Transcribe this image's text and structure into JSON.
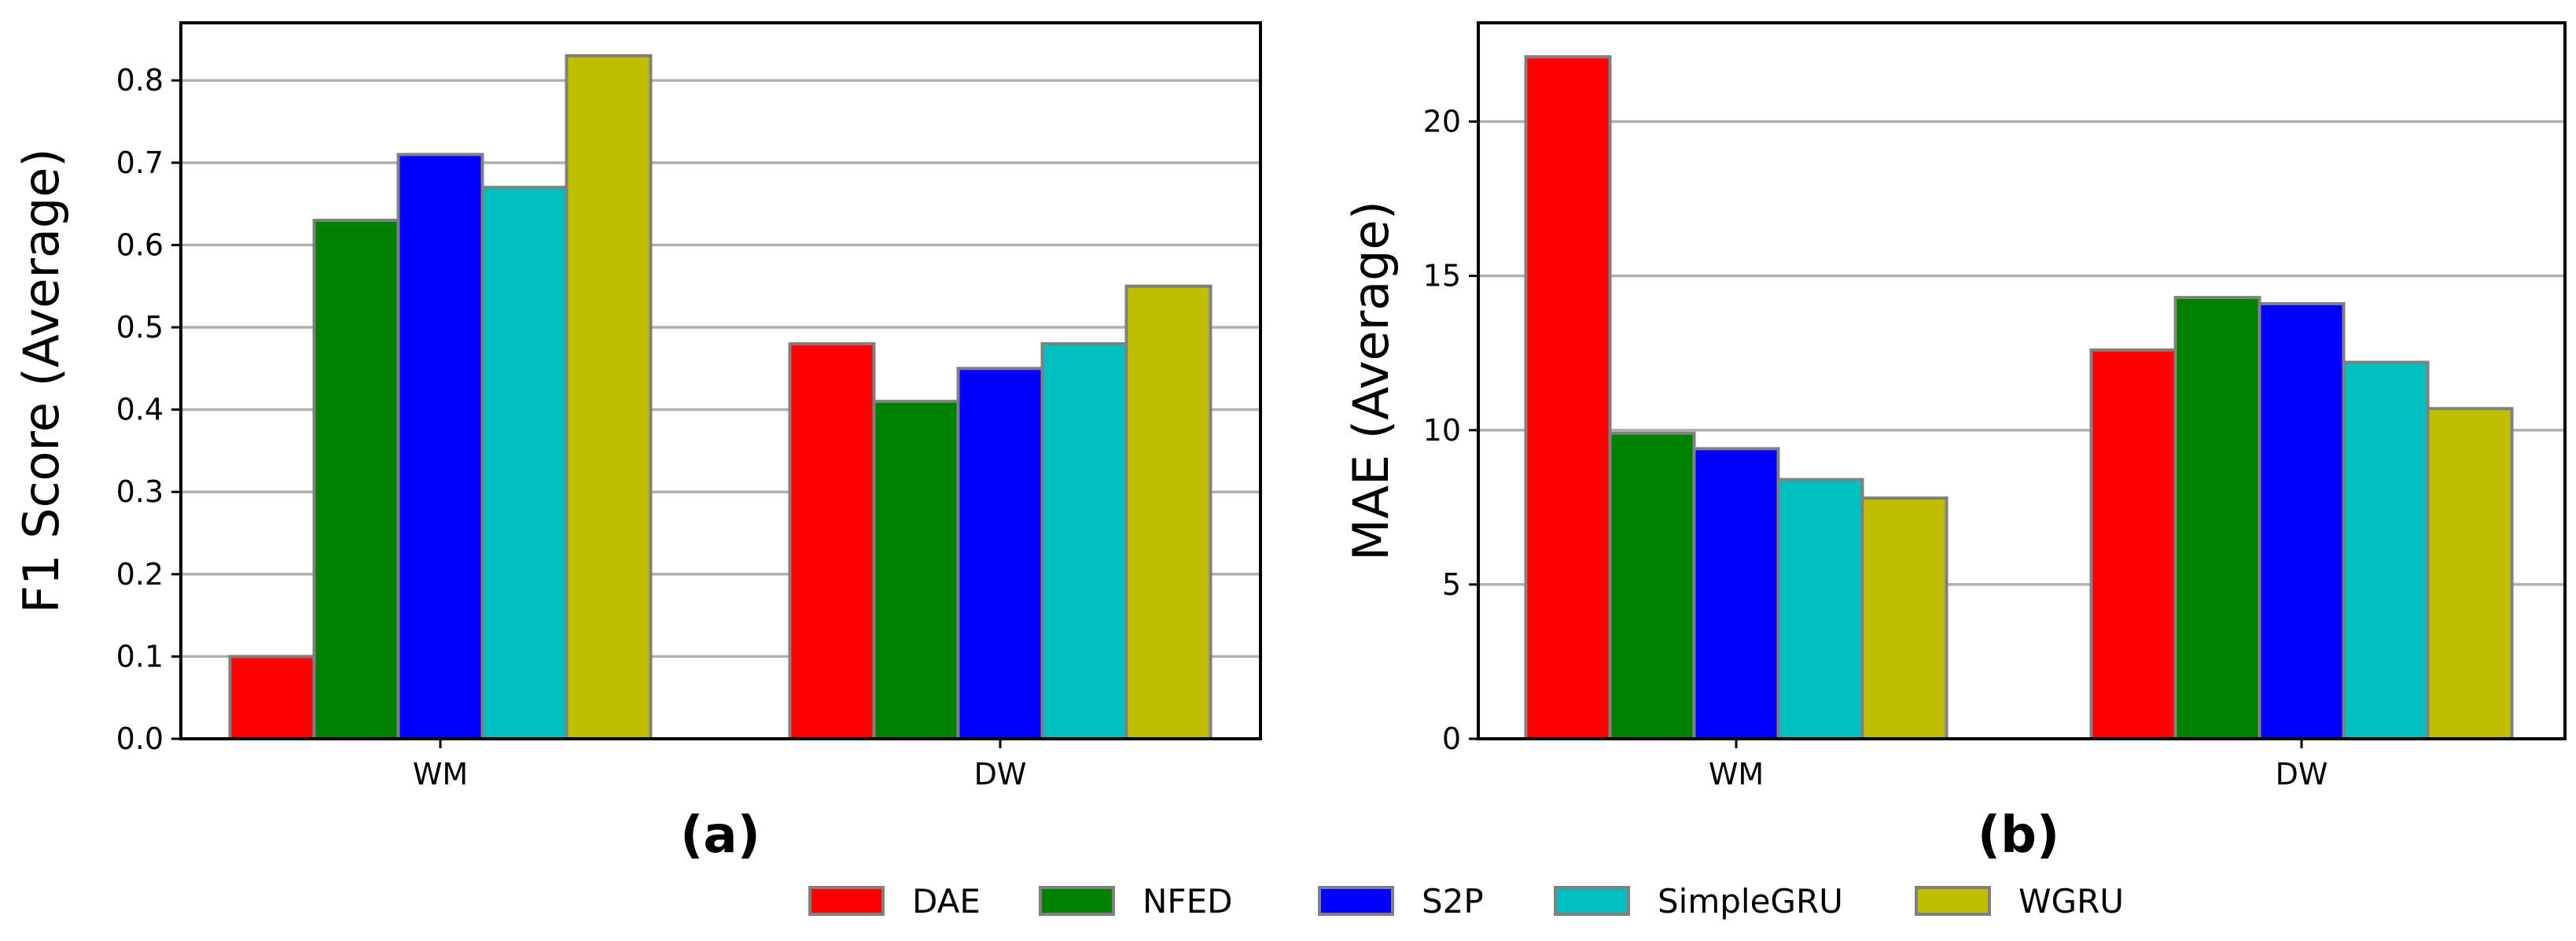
{
  "legend": [
    {
      "name": "DAE",
      "color": "#ff0000"
    },
    {
      "name": "NFED",
      "color": "#008000"
    },
    {
      "name": "S2P",
      "color": "#0000ff"
    },
    {
      "name": "SimpleGRU",
      "color": "#00bfbf"
    },
    {
      "name": "WGRU",
      "color": "#bfbf00"
    }
  ],
  "chart_data": [
    {
      "type": "bar",
      "panel_label": "(a)",
      "ylabel": "F1 Score (Average)",
      "categories": [
        "WM",
        "DW"
      ],
      "ylim": [
        0,
        0.87
      ],
      "yticks": [
        "0.0",
        "0.1",
        "0.2",
        "0.3",
        "0.4",
        "0.5",
        "0.6",
        "0.7",
        "0.8"
      ],
      "grid": "horizontal",
      "series": [
        {
          "name": "DAE",
          "color": "#ff0000",
          "values": [
            0.1,
            0.48
          ]
        },
        {
          "name": "NFED",
          "color": "#008000",
          "values": [
            0.63,
            0.41
          ]
        },
        {
          "name": "S2P",
          "color": "#0000ff",
          "values": [
            0.71,
            0.45
          ]
        },
        {
          "name": "SimpleGRU",
          "color": "#00bfbf",
          "values": [
            0.67,
            0.48
          ]
        },
        {
          "name": "WGRU",
          "color": "#bfbf00",
          "values": [
            0.83,
            0.55
          ]
        }
      ]
    },
    {
      "type": "bar",
      "panel_label": "(b)",
      "ylabel": "MAE (Average)",
      "categories": [
        "WM",
        "DW"
      ],
      "ylim": [
        0,
        23.2
      ],
      "yticks": [
        "0",
        "5",
        "10",
        "15",
        "20"
      ],
      "grid": "horizontal",
      "series": [
        {
          "name": "DAE",
          "color": "#ff0000",
          "values": [
            22.1,
            12.6
          ]
        },
        {
          "name": "NFED",
          "color": "#008000",
          "values": [
            9.9,
            14.3
          ]
        },
        {
          "name": "S2P",
          "color": "#0000ff",
          "values": [
            9.4,
            14.1
          ]
        },
        {
          "name": "SimpleGRU",
          "color": "#00bfbf",
          "values": [
            8.4,
            12.2
          ]
        },
        {
          "name": "WGRU",
          "color": "#bfbf00",
          "values": [
            7.8,
            10.7
          ]
        }
      ]
    }
  ]
}
